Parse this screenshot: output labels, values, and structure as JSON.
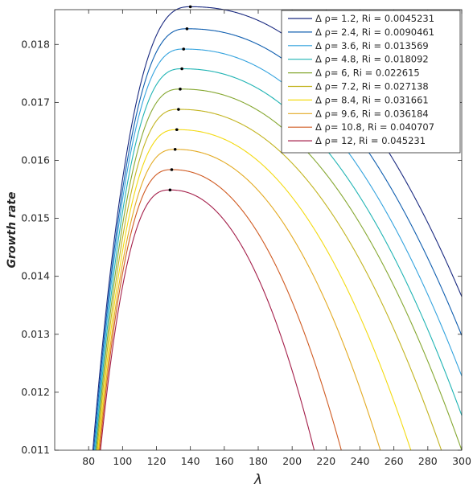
{
  "chart_data": {
    "type": "line",
    "xlabel": "λ",
    "ylabel": "Growth rate",
    "xlim": [
      60,
      300
    ],
    "ylim": [
      0.011,
      0.0186
    ],
    "xticks": [
      "80",
      "100",
      "120",
      "140",
      "160",
      "180",
      "200",
      "220",
      "240",
      "260",
      "280",
      "300"
    ],
    "yticks": [
      "0.011",
      "0.012",
      "0.013",
      "0.014",
      "0.015",
      "0.016",
      "0.017",
      "0.018"
    ],
    "legend_position": "top-right",
    "grid": false,
    "series": [
      {
        "name": "Δ ρ= 1.2,   Ri = 0.0045231",
        "color": "#1a2a80",
        "peak": {
          "x": 140,
          "y": 0.01865
        },
        "x_at_ymin": 82.5,
        "y_at_x300": 0.01365
      },
      {
        "name": "Δ ρ= 2.4,   Ri = 0.0090461",
        "color": "#0f5eaf",
        "peak": {
          "x": 138,
          "y": 0.01827
        },
        "x_at_ymin": 83.0,
        "y_at_x300": 0.01298
      },
      {
        "name": "Δ ρ= 3.6,   Ri = 0.013569",
        "color": "#34a3de",
        "peak": {
          "x": 136,
          "y": 0.01792
        },
        "x_at_ymin": 83.5,
        "y_at_x300": 0.01228
      },
      {
        "name": "Δ ρ= 4.8,   Ri = 0.018092",
        "color": "#21b4b4",
        "peak": {
          "x": 135,
          "y": 0.01758
        },
        "x_at_ymin": 84.0,
        "y_at_x300": 0.0116
      },
      {
        "name": "Δ ρ= 6,   Ri = 0.022615",
        "color": "#86a832",
        "peak": {
          "x": 134,
          "y": 0.01723
        },
        "x_at_ymin": 84.5,
        "y_at_x300": 0.011
      },
      {
        "name": "Δ ρ= 7.2,   Ri = 0.027138",
        "color": "#c2b420",
        "peak": {
          "x": 133,
          "y": 0.01688
        },
        "x_at_ymin": 85.0,
        "x_at_ymin_right": 288
      },
      {
        "name": "Δ ρ= 8.4,   Ri = 0.031661",
        "color": "#f3da12",
        "peak": {
          "x": 132,
          "y": 0.01653
        },
        "x_at_ymin": 85.5,
        "x_at_ymin_right": 270
      },
      {
        "name": "Δ ρ= 9.6,   Ri = 0.036184",
        "color": "#e3aa22",
        "peak": {
          "x": 131,
          "y": 0.01619
        },
        "x_at_ymin": 86.0,
        "x_at_ymin_right": 252
      },
      {
        "name": "Δ ρ= 10.8,   Ri = 0.040707",
        "color": "#d05b22",
        "peak": {
          "x": 129,
          "y": 0.01584
        },
        "x_at_ymin": 86.5,
        "x_at_ymin_right": 229
      },
      {
        "name": "Δ ρ= 12,   Ri = 0.045231",
        "color": "#a41f4a",
        "peak": {
          "x": 128,
          "y": 0.01549
        },
        "x_at_ymin": 87.0,
        "x_at_ymin_right": 213
      }
    ]
  }
}
